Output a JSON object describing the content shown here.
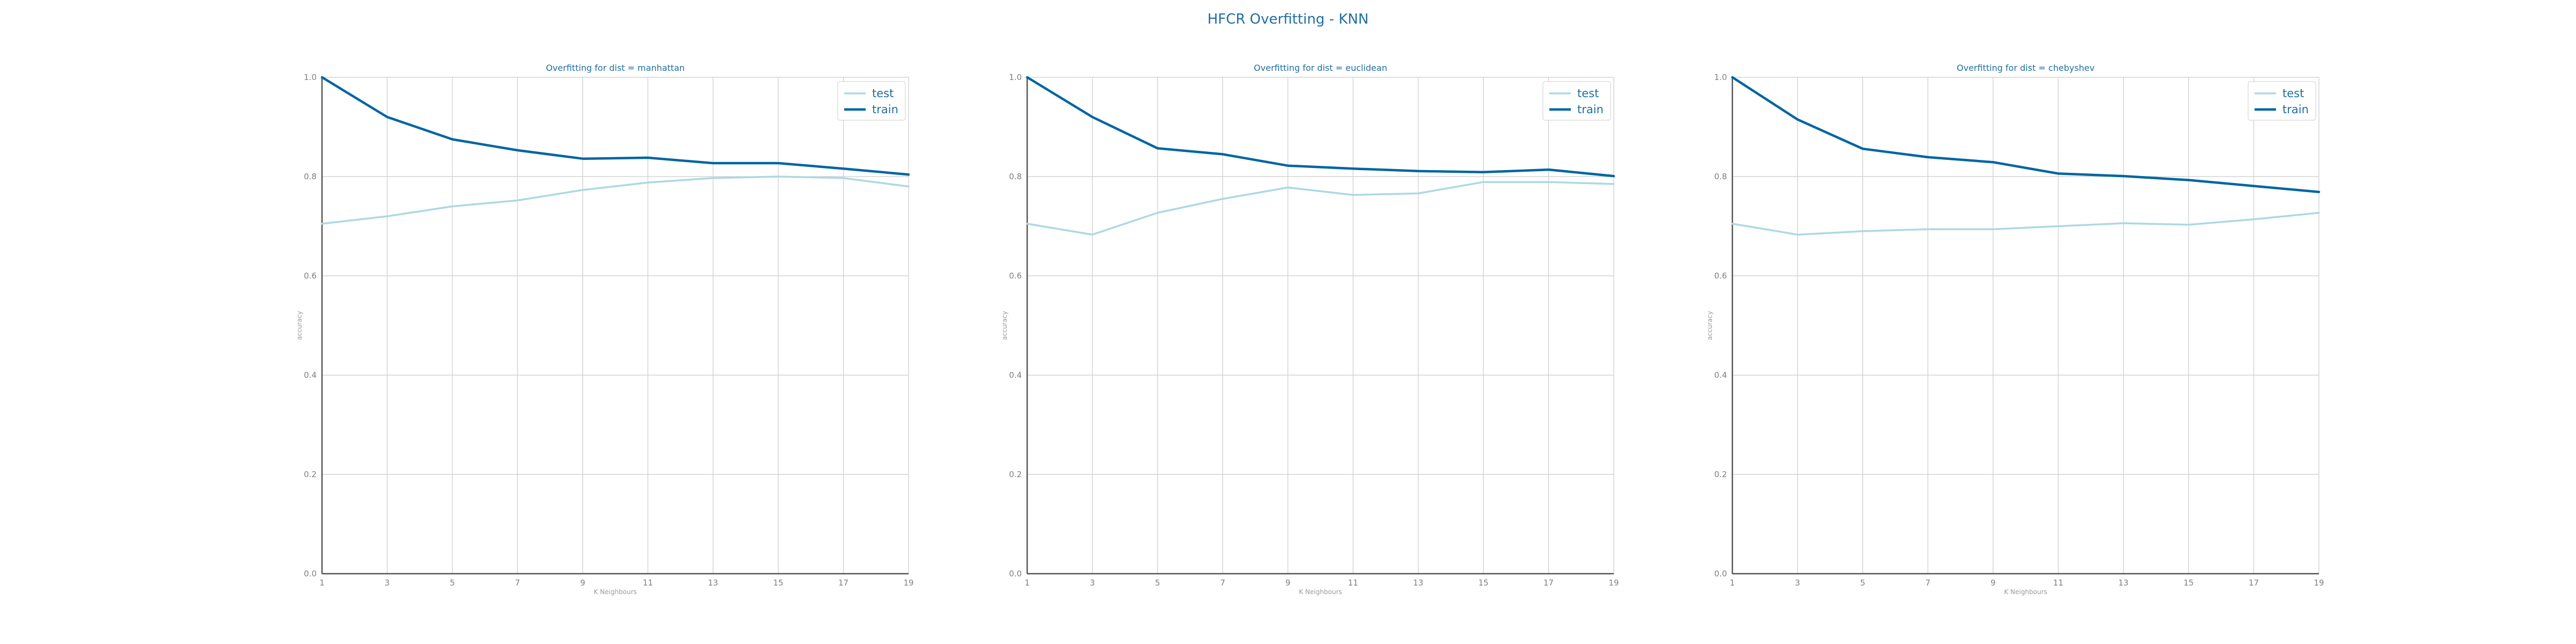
{
  "suptitle": "HFCR Overfitting - KNN",
  "chart_data": [
    {
      "type": "line",
      "title": "Overfitting for dist = manhattan",
      "xlabel": "K Neighbours",
      "ylabel": "accuracy",
      "x": [
        1,
        3,
        5,
        7,
        9,
        11,
        13,
        15,
        17,
        19
      ],
      "ylim": [
        0.0,
        1.0
      ],
      "yticks": [
        "0.0",
        "0.2",
        "0.4",
        "0.6",
        "0.8",
        "1.0"
      ],
      "grid": true,
      "legend": "upper-right",
      "series": [
        {
          "name": "test",
          "color": "#add8e6",
          "values": [
            0.705,
            0.72,
            0.74,
            0.752,
            0.773,
            0.788,
            0.797,
            0.8,
            0.797,
            0.78
          ]
        },
        {
          "name": "train",
          "color": "#0065a2",
          "values": [
            1.0,
            0.92,
            0.875,
            0.853,
            0.836,
            0.838,
            0.827,
            0.827,
            0.816,
            0.804
          ]
        }
      ]
    },
    {
      "type": "line",
      "title": "Overfitting for dist = euclidean",
      "xlabel": "K Neighbours",
      "ylabel": "accuracy",
      "x": [
        1,
        3,
        5,
        7,
        9,
        11,
        13,
        15,
        17,
        19
      ],
      "ylim": [
        0.0,
        1.0
      ],
      "yticks": [
        "0.0",
        "0.2",
        "0.4",
        "0.6",
        "0.8",
        "1.0"
      ],
      "grid": true,
      "legend": "upper-right",
      "series": [
        {
          "name": "test",
          "color": "#add8e6",
          "values": [
            0.705,
            0.683,
            0.727,
            0.755,
            0.778,
            0.763,
            0.766,
            0.789,
            0.789,
            0.785
          ]
        },
        {
          "name": "train",
          "color": "#0065a2",
          "values": [
            1.0,
            0.92,
            0.857,
            0.845,
            0.822,
            0.816,
            0.811,
            0.809,
            0.814,
            0.801
          ]
        }
      ]
    },
    {
      "type": "line",
      "title": "Overfitting for dist = chebyshev",
      "xlabel": "K Neighbours",
      "ylabel": "accuracy",
      "x": [
        1,
        3,
        5,
        7,
        9,
        11,
        13,
        15,
        17,
        19
      ],
      "ylim": [
        0.0,
        1.0
      ],
      "yticks": [
        "0.0",
        "0.2",
        "0.4",
        "0.6",
        "0.8",
        "1.0"
      ],
      "grid": true,
      "legend": "upper-right",
      "series": [
        {
          "name": "test",
          "color": "#add8e6",
          "values": [
            0.705,
            0.683,
            0.69,
            0.694,
            0.694,
            0.7,
            0.706,
            0.703,
            0.714,
            0.727
          ]
        },
        {
          "name": "train",
          "color": "#0065a2",
          "values": [
            1.0,
            0.915,
            0.856,
            0.839,
            0.829,
            0.806,
            0.801,
            0.793,
            0.781,
            0.769
          ]
        }
      ]
    }
  ]
}
